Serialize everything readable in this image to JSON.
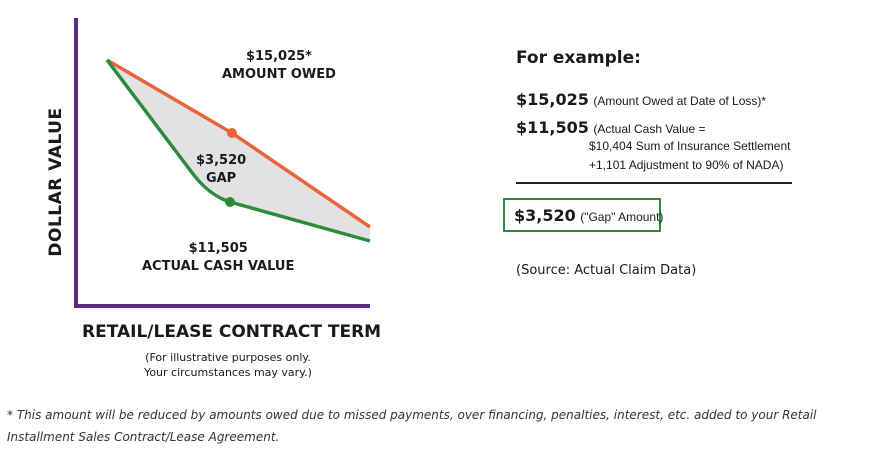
{
  "diagram": {
    "y_axis_label": "DOLLAR VALUE",
    "x_axis_label": "RETAIL/LEASE CONTRACT TERM",
    "illustrative_note": [
      "(For illustrative purposes only.",
      "Your circumstances may vary.)"
    ],
    "amount_owed": {
      "value": "$15,025*",
      "label": "AMOUNT OWED"
    },
    "gap": {
      "value": "$3,520",
      "label": "GAP"
    },
    "acv": {
      "value": "$11,505",
      "label": "ACTUAL CASH VALUE"
    },
    "colors": {
      "axis": "#5b2d82",
      "owed_line": "#e8643c",
      "acv_line": "#2e8b3e",
      "gap_fill": "#e2e2e2"
    }
  },
  "example": {
    "heading": "For example:",
    "owed_amount": "$15,025",
    "owed_note": "(Amount Owed at Date of Loss)*",
    "acv_amount": "$11,505",
    "acv_note_1": "(Actual Cash Value =",
    "acv_note_2": "$10,404 Sum of Insurance Settlement",
    "acv_note_3": "+1,101 Adjustment to 90% of NADA)",
    "gap_amount": "$3,520",
    "gap_note": "(\"Gap\" Amount)",
    "source": "(Source: Actual Claim Data)"
  },
  "footer": "* This amount will be reduced by amounts owed due to missed payments, over financing, penalties, interest, etc. added to your Retail Installment Sales Contract/Lease Agreement."
}
